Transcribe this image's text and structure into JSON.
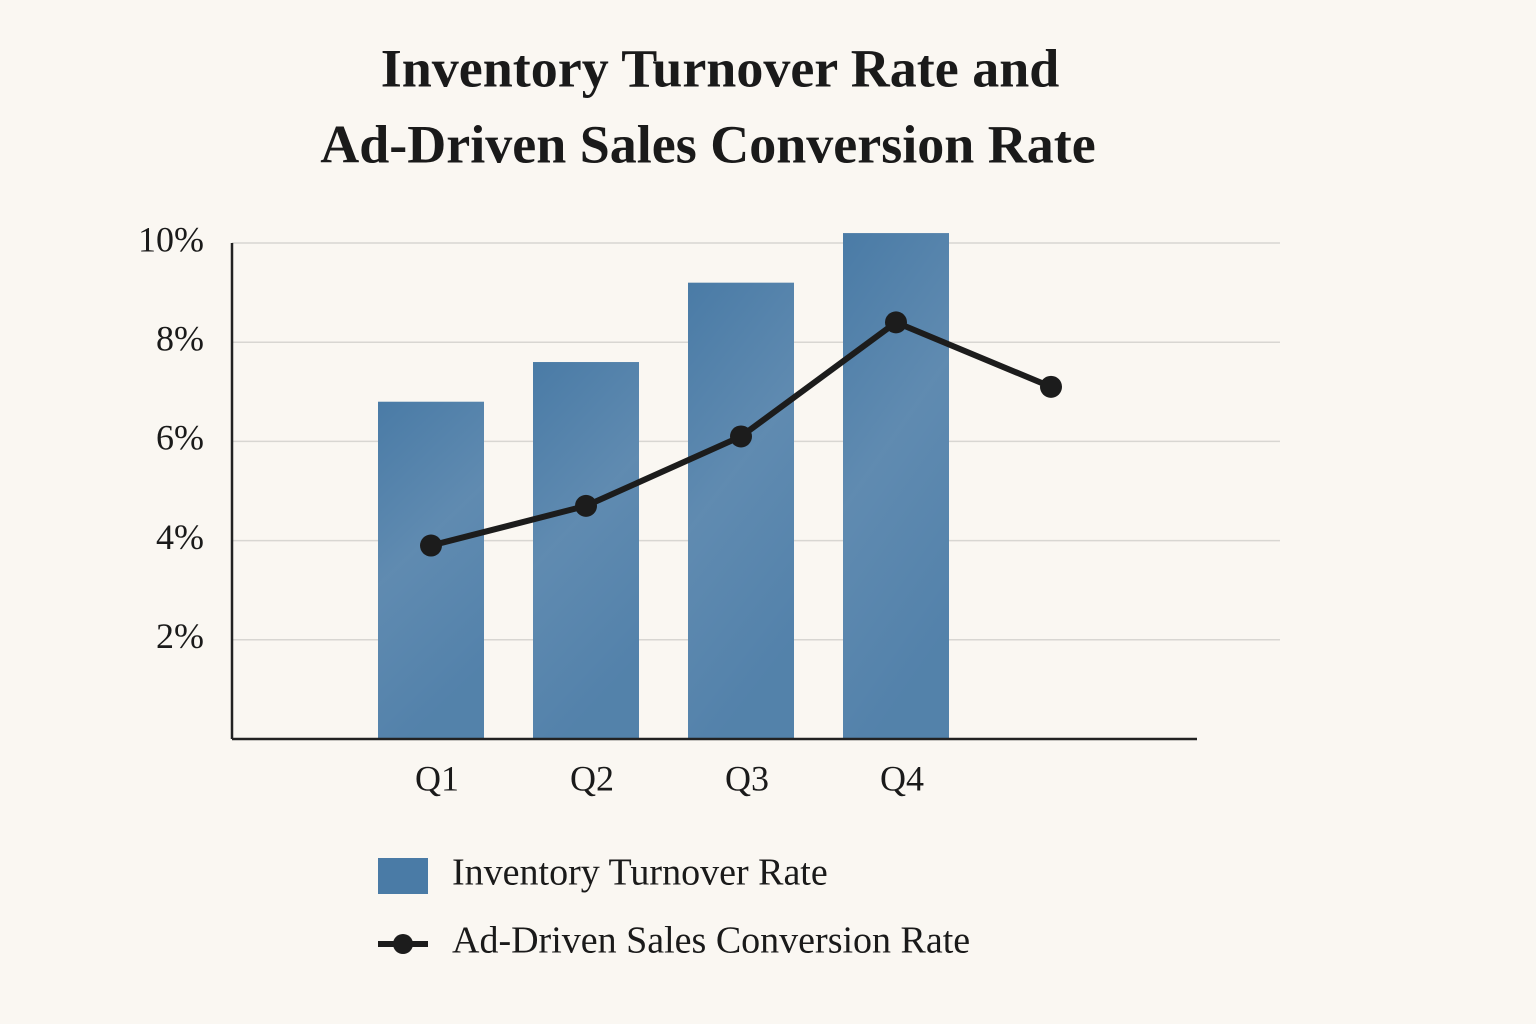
{
  "chart_data": {
    "type": "bar-line",
    "title": [
      "Inventory Turnover Rate and",
      "Ad-Driven Sales Conversion Rate"
    ],
    "categories": [
      "Q1",
      "Q2",
      "Q3",
      "Q4",
      null
    ],
    "series": [
      {
        "name": "Inventory Turnover Rate",
        "type": "bar",
        "color": "#4a7ba6",
        "values": [
          6.8,
          7.6,
          9.2,
          10.2,
          null
        ]
      },
      {
        "name": "Ad-Driven Sales Conversion Rate",
        "type": "line",
        "color": "#1c1c1c",
        "values": [
          3.9,
          4.7,
          6.1,
          8.4,
          7.1
        ]
      }
    ],
    "ylim": [
      0,
      10
    ],
    "yticks": [
      {
        "value": 2,
        "label": "2%"
      },
      {
        "value": 4,
        "label": "4%"
      },
      {
        "value": 6,
        "label": "6%"
      },
      {
        "value": 8,
        "label": "8%"
      },
      {
        "value": 10,
        "label": "10%"
      }
    ],
    "grid": true,
    "legend": "bottom"
  }
}
